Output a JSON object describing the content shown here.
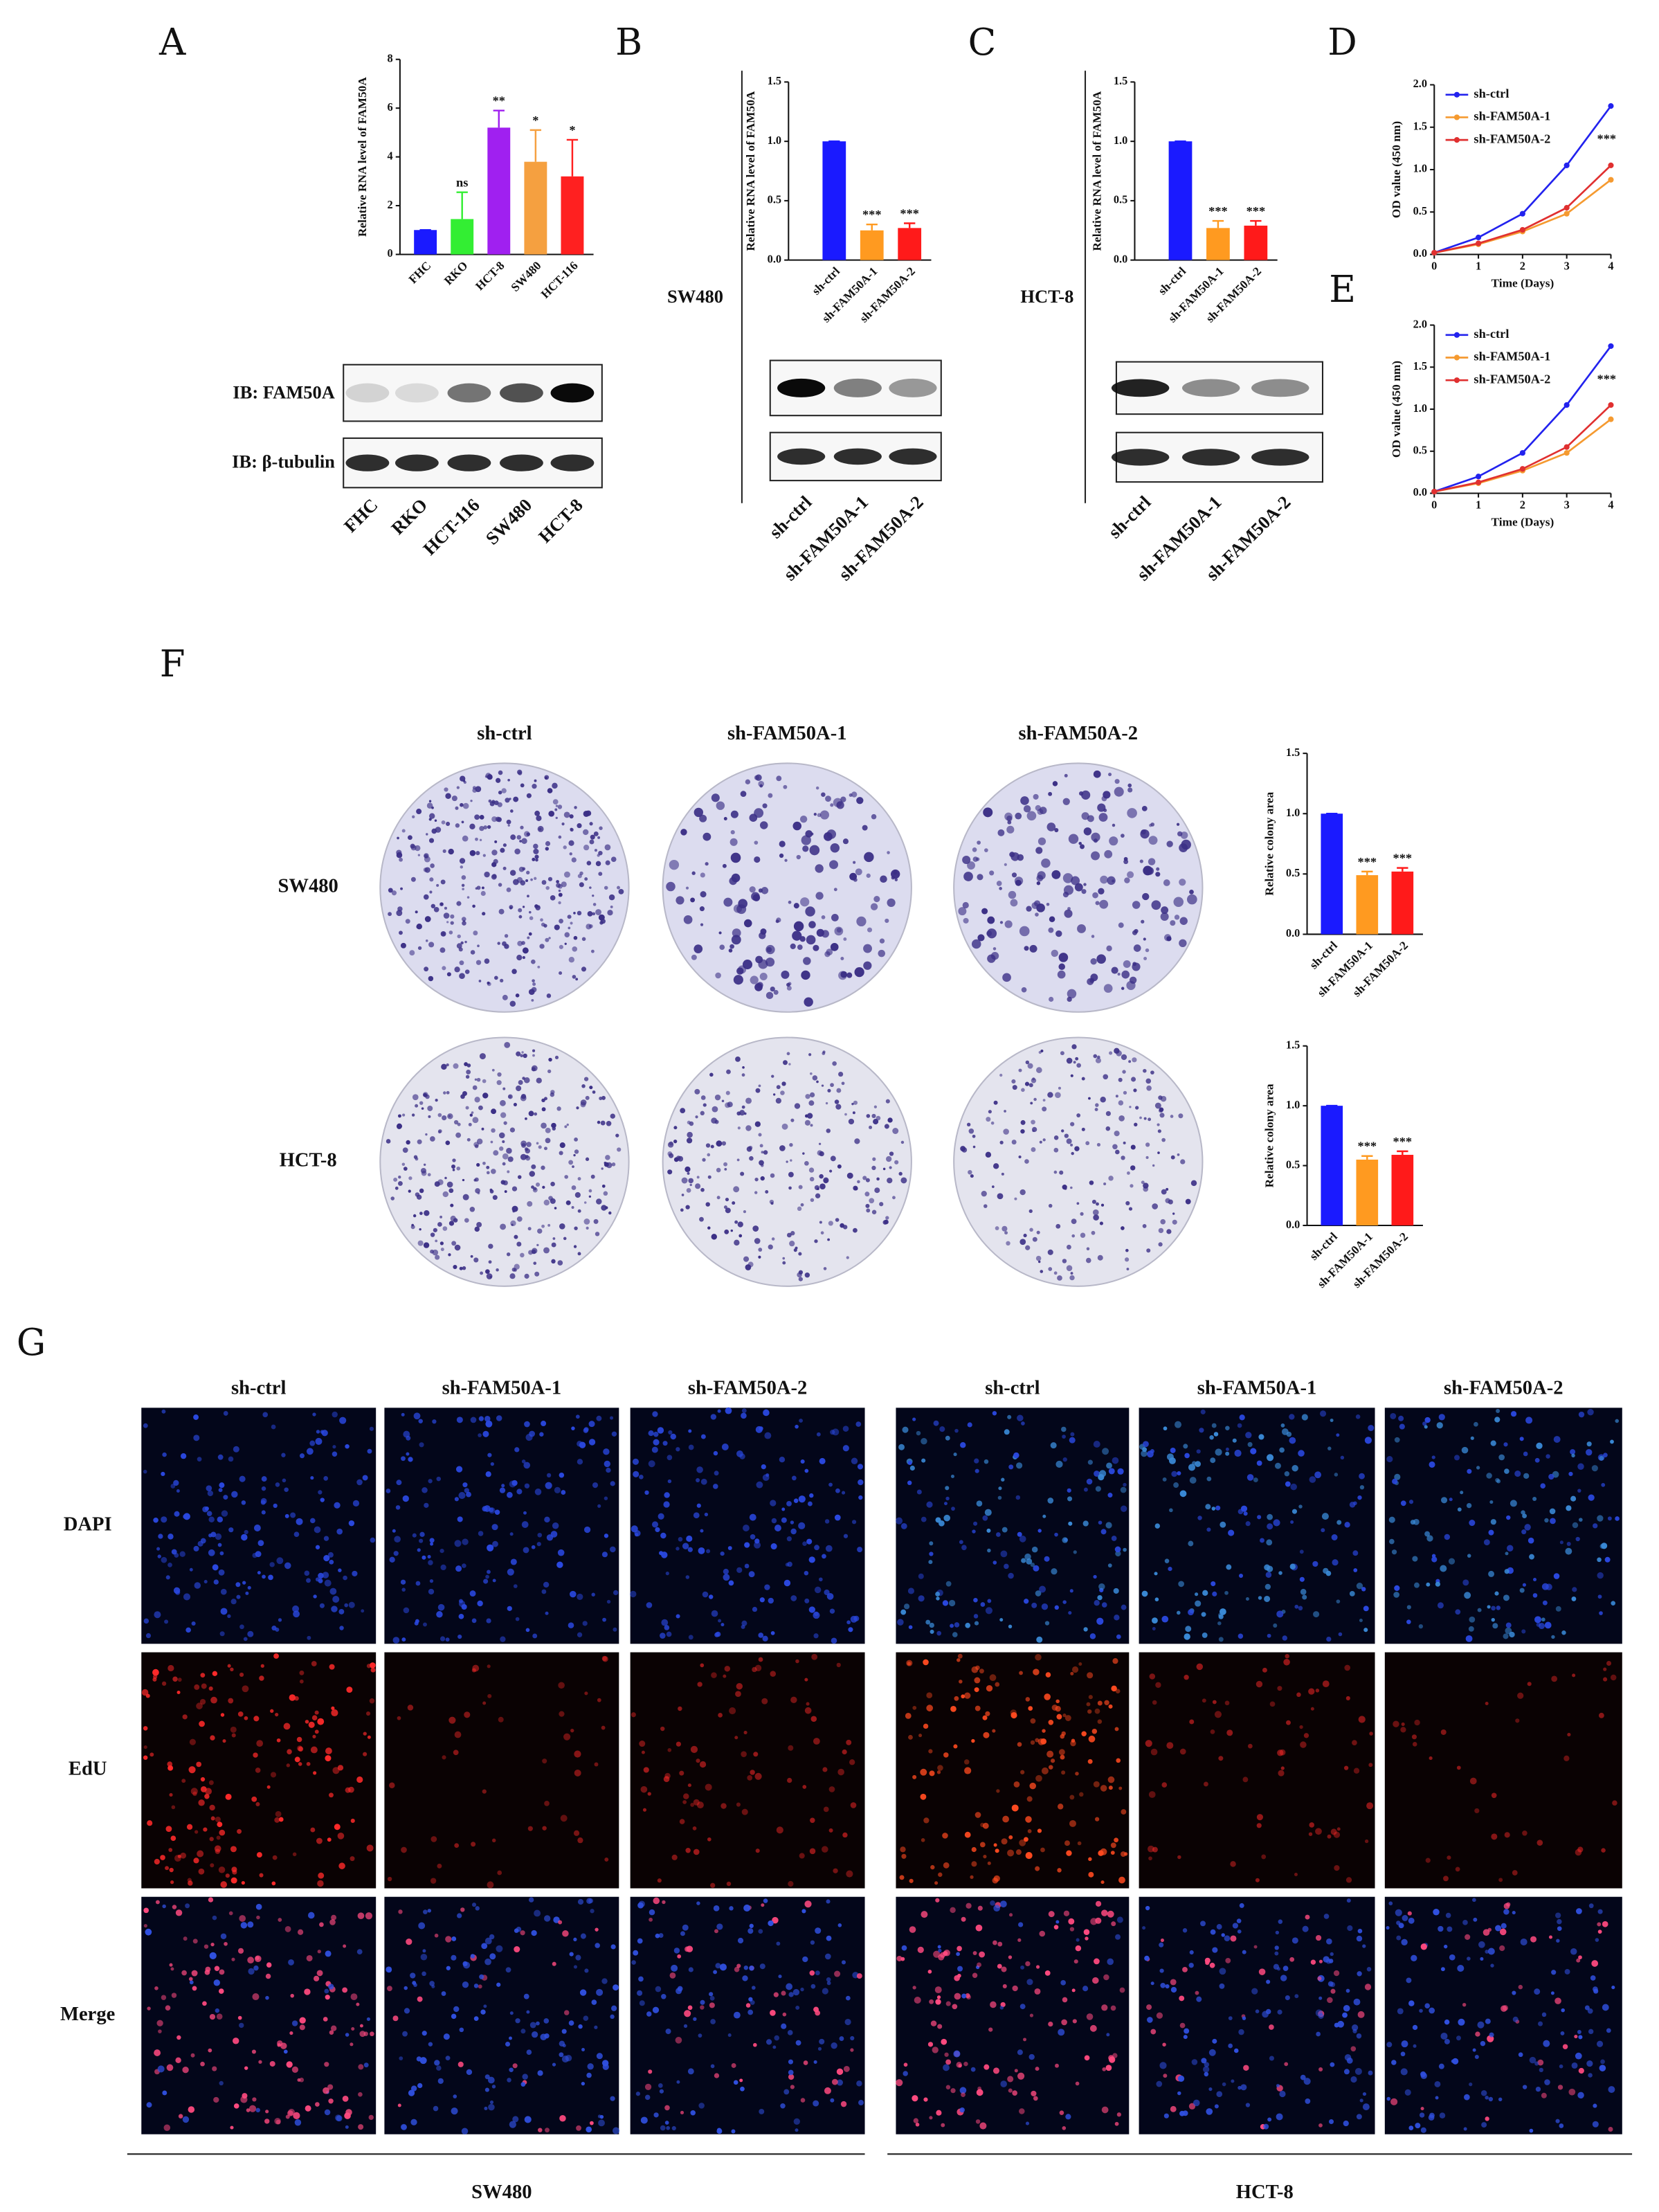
{
  "panel_labels": [
    "A",
    "B",
    "C",
    "D",
    "E",
    "F",
    "G"
  ],
  "panel_a_blot": {
    "rows": [
      "IB: FAM50A",
      "IB: β-tubulin"
    ],
    "lanes": [
      "FHC",
      "RKO",
      "HCT-116",
      "SW480",
      "HCT-8"
    ]
  },
  "panel_b": {
    "cell_line": "SW480",
    "lanes": [
      "sh-ctrl",
      "sh-FAM50A-1",
      "sh-FAM50A-2"
    ]
  },
  "panel_c": {
    "cell_line": "HCT-8",
    "lanes": [
      "sh-ctrl",
      "sh-FAM50A-1",
      "sh-FAM50A-2"
    ]
  },
  "panel_f": {
    "columns": [
      "sh-ctrl",
      "sh-FAM50A-1",
      "sh-FAM50A-2"
    ],
    "rows": [
      "SW480",
      "HCT-8"
    ]
  },
  "panel_g": {
    "columns": [
      "sh-ctrl",
      "sh-FAM50A-1",
      "sh-FAM50A-2",
      "sh-ctrl",
      "sh-FAM50A-1",
      "sh-FAM50A-2"
    ],
    "rows": [
      "DAPI",
      "EdU",
      "Merge"
    ],
    "groups": [
      "SW480",
      "HCT-8"
    ]
  },
  "chart_data": [
    {
      "type": "bar",
      "y_label": "Relative RNA level of FAM50A",
      "categories": [
        "FHC",
        "RKO",
        "HCT-8",
        "SW480",
        "HCT-116"
      ],
      "values": [
        1,
        1.45,
        5.2,
        3.8,
        3.2
      ],
      "errors": [
        0,
        1.1,
        0.7,
        1.3,
        1.5
      ],
      "colors": [
        "#1a1aff",
        "#33ee33",
        "#a020f0",
        "#f5a040",
        "#ff2020"
      ],
      "annotations": [
        null,
        "ns",
        "**",
        "*",
        "*"
      ],
      "ylim": [
        0,
        8
      ],
      "yticks": [
        0,
        2,
        4,
        6,
        8
      ]
    },
    {
      "type": "bar",
      "y_label": "Relative RNA level of FAM50A",
      "categories": [
        "sh-ctrl",
        "sh-FAM50A-1",
        "sh-FAM50A-2"
      ],
      "values": [
        1,
        0.25,
        0.27
      ],
      "errors": [
        0,
        0.05,
        0.04
      ],
      "colors": [
        "#1a1aff",
        "#ff9a20",
        "#ff1a1a"
      ],
      "annotations": [
        null,
        "***",
        "***"
      ],
      "ylim": [
        0,
        1.5
      ],
      "yticks": [
        {
          "value": 0,
          "label": "0.0"
        },
        0.5,
        {
          "value": 1,
          "label": "1.0"
        },
        1.5
      ]
    },
    {
      "type": "bar",
      "y_label": "Relative RNA level of FAM50A",
      "categories": [
        "sh-ctrl",
        "sh-FAM50A-1",
        "sh-FAM50A-2"
      ],
      "values": [
        1,
        0.27,
        0.29
      ],
      "errors": [
        0,
        0.06,
        0.04
      ],
      "colors": [
        "#1a1aff",
        "#ff9a20",
        "#ff1a1a"
      ],
      "annotations": [
        null,
        "***",
        "***"
      ],
      "ylim": [
        0,
        1.5
      ],
      "yticks": [
        {
          "value": 0,
          "label": "0.0"
        },
        0.5,
        {
          "value": 1,
          "label": "1.0"
        },
        1.5
      ]
    },
    {
      "type": "line",
      "x_label": "Time (Days)",
      "y_label": "OD value (450 nm)",
      "x": [
        0,
        1,
        2,
        3,
        4
      ],
      "series": [
        {
          "name": "sh-ctrl",
          "color": "#2222ee",
          "values": [
            0.02,
            0.2,
            0.48,
            1.05,
            1.75
          ]
        },
        {
          "name": "sh-FAM50A-1",
          "color": "#f59a30",
          "values": [
            0.02,
            0.12,
            0.27,
            0.48,
            0.88
          ]
        },
        {
          "name": "sh-FAM50A-2",
          "color": "#e03030",
          "values": [
            0.02,
            0.13,
            0.29,
            0.55,
            1.05
          ]
        }
      ],
      "annotation": "***",
      "xlim": [
        0,
        4
      ],
      "xticks": [
        0,
        1,
        2,
        3,
        4
      ],
      "ylim": [
        0,
        2
      ],
      "yticks": [
        {
          "value": 0,
          "label": "0.0"
        },
        0.5,
        {
          "value": 1,
          "label": "1.0"
        },
        1.5,
        {
          "value": 2,
          "label": "2.0"
        }
      ]
    },
    {
      "type": "line",
      "x_label": "Time (Days)",
      "y_label": "OD value (450 nm)",
      "x": [
        0,
        1,
        2,
        3,
        4
      ],
      "series": [
        {
          "name": "sh-ctrl",
          "color": "#2222ee",
          "values": [
            0.02,
            0.2,
            0.48,
            1.05,
            1.75
          ]
        },
        {
          "name": "sh-FAM50A-1",
          "color": "#f59a30",
          "values": [
            0.02,
            0.12,
            0.27,
            0.48,
            0.88
          ]
        },
        {
          "name": "sh-FAM50A-2",
          "color": "#e03030",
          "values": [
            0.02,
            0.13,
            0.29,
            0.55,
            1.05
          ]
        }
      ],
      "annotation": "***",
      "xlim": [
        0,
        4
      ],
      "xticks": [
        0,
        1,
        2,
        3,
        4
      ],
      "ylim": [
        0,
        2
      ],
      "yticks": [
        {
          "value": 0,
          "label": "0.0"
        },
        0.5,
        {
          "value": 1,
          "label": "1.0"
        },
        1.5,
        {
          "value": 2,
          "label": "2.0"
        }
      ]
    },
    {
      "type": "bar",
      "y_label": "Relative colony area",
      "categories": [
        "sh-ctrl",
        "sh-FAM50A-1",
        "sh-FAM50A-2"
      ],
      "values": [
        1,
        0.49,
        0.52
      ],
      "errors": [
        0,
        0.03,
        0.03
      ],
      "colors": [
        "#1a1aff",
        "#ff9a20",
        "#ff1a1a"
      ],
      "annotations": [
        null,
        "***",
        "***"
      ],
      "ylim": [
        0,
        1.5
      ],
      "yticks": [
        {
          "value": 0,
          "label": "0.0"
        },
        0.5,
        {
          "value": 1,
          "label": "1.0"
        },
        1.5
      ]
    },
    {
      "type": "bar",
      "y_label": "Relative colony area",
      "categories": [
        "sh-ctrl",
        "sh-FAM50A-1",
        "sh-FAM50A-2"
      ],
      "values": [
        1,
        0.55,
        0.59
      ],
      "errors": [
        0,
        0.03,
        0.03
      ],
      "colors": [
        "#1a1aff",
        "#ff9a20",
        "#ff1a1a"
      ],
      "annotations": [
        null,
        "***",
        "***"
      ],
      "ylim": [
        0,
        1.5
      ],
      "yticks": [
        {
          "value": 0,
          "label": "0.0"
        },
        0.5,
        {
          "value": 1,
          "label": "1.0"
        },
        1.5
      ]
    }
  ]
}
